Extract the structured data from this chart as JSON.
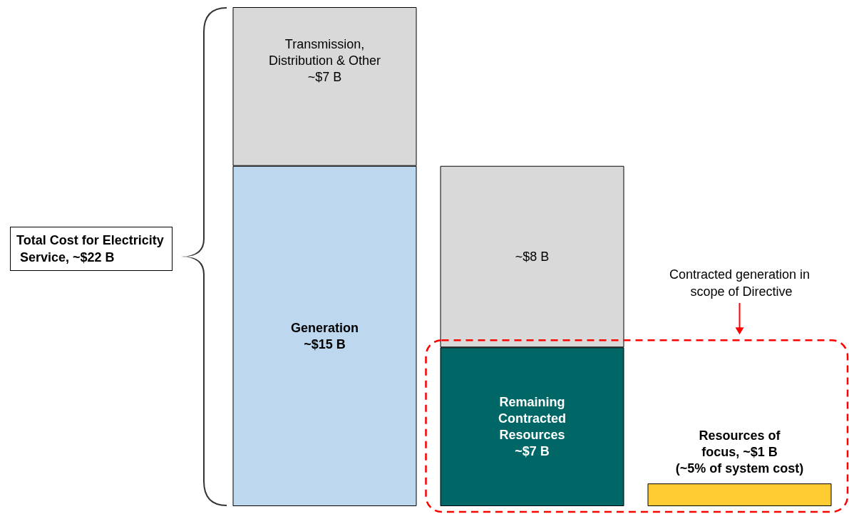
{
  "chart_data": {
    "type": "bar",
    "stacked": true,
    "categories": [
      null,
      null,
      null
    ],
    "series": [
      {
        "colors": [
          "#bdd7ee",
          "#006666",
          "#ffcc33"
        ],
        "values": [
          15,
          7,
          1
        ],
        "value_labels": [
          "Generation\n~$15 B",
          "Remaining\nContracted\nResources\n~$7 B",
          "Resources of\nfocus, ~$1 B\n(~5% of system cost)"
        ]
      },
      {
        "colors": [
          "#d9d9d9",
          "#d9d9d9",
          null
        ],
        "values": [
          7,
          8,
          null
        ],
        "value_labels": [
          "Transmission,\nDistribution & Other\n~$7 B",
          "~$8 B",
          null
        ]
      }
    ],
    "annotations": [
      "Total Cost for Electricity Service, ~$22 B",
      "Contracted generation in scope of Directive"
    ]
  }
}
